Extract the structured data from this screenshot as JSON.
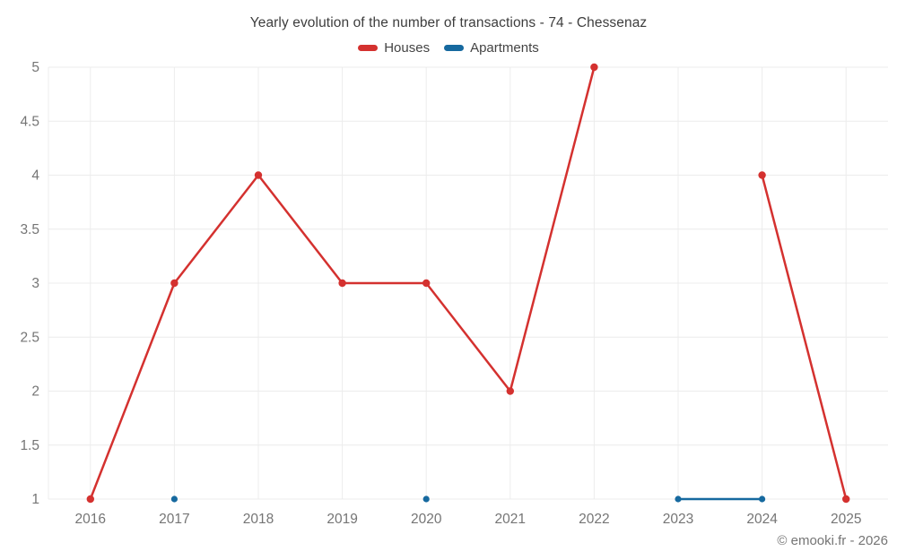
{
  "page": {
    "footer": "© emooki.fr - 2026"
  },
  "chart_data": {
    "type": "line",
    "title": "Yearly evolution of the number of transactions - 74 - Chessenaz",
    "categories": [
      "2016",
      "2017",
      "2018",
      "2019",
      "2020",
      "2021",
      "2022",
      "2023",
      "2024",
      "2025"
    ],
    "series": [
      {
        "name": "Houses",
        "color": "#d4312f",
        "values": [
          1,
          3,
          4,
          3,
          3,
          2,
          5,
          null,
          4,
          1
        ]
      },
      {
        "name": "Apartments",
        "color": "#16699f",
        "values": [
          null,
          1,
          null,
          null,
          1,
          null,
          null,
          1,
          1,
          null
        ]
      }
    ],
    "xlabel": "",
    "ylabel": "",
    "ylim": [
      1,
      5
    ],
    "yticks": [
      1,
      1.5,
      2,
      2.5,
      3,
      3.5,
      4,
      4.5,
      5
    ],
    "grid": true,
    "legend_position": "top",
    "grid_color": "#ececec",
    "tick_color": "#757575"
  }
}
